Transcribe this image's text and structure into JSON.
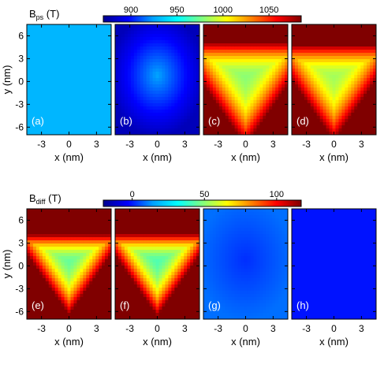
{
  "chart_data": {
    "type": "heatmap",
    "colormap": [
      "#000090",
      "#0000ff",
      "#00a0ff",
      "#00ffff",
      "#80ff80",
      "#ffff00",
      "#ff8000",
      "#ff0000",
      "#800000"
    ],
    "x_tick_labels": [
      "-3",
      "0",
      "3"
    ],
    "x_ticks": [
      -3,
      0,
      3
    ],
    "y_tick_labels": [
      "6",
      "3",
      "0",
      "-3",
      "-6"
    ],
    "y_ticks": [
      6,
      3,
      0,
      -3,
      -6
    ],
    "xlim": [
      -4.6,
      4.6
    ],
    "ylim": [
      -7,
      7.5
    ],
    "xlabel": "x (nm)",
    "ylabel": "y (nm)",
    "groups": [
      {
        "colorbar": {
          "label_main": "B",
          "label_sub": "ps",
          "label_tail": " (T)",
          "range": [
            870,
            1085
          ],
          "ticks": [
            900,
            950,
            1000,
            1050
          ],
          "tick_labels": [
            "900",
            "950",
            "1000",
            "1050"
          ]
        },
        "panels": [
          {
            "label": "(a)",
            "field": "uniform",
            "base": 930,
            "amp": 0
          },
          {
            "label": "(b)",
            "field": "radial",
            "base": 925,
            "amp": -45
          },
          {
            "label": "(c)",
            "field": "triangular",
            "base": 980,
            "amp": 105
          },
          {
            "label": "(d)",
            "field": "triangular",
            "base": 985,
            "amp": 115
          }
        ]
      },
      {
        "colorbar": {
          "label_main": "B",
          "label_sub": "diff",
          "label_tail": " (T)",
          "range": [
            -20,
            117
          ],
          "ticks": [
            0,
            50,
            100
          ],
          "tick_labels": [
            "0",
            "50",
            "100"
          ]
        },
        "panels": [
          {
            "label": "(e)",
            "field": "triangular",
            "base": 45,
            "amp": 115
          },
          {
            "label": "(f)",
            "field": "triangular",
            "base": 42,
            "amp": 115
          },
          {
            "label": "(g)",
            "field": "radial",
            "base": 2,
            "amp": 7
          },
          {
            "label": "(h)",
            "field": "uniform",
            "base": -1,
            "amp": 0
          }
        ]
      }
    ]
  }
}
